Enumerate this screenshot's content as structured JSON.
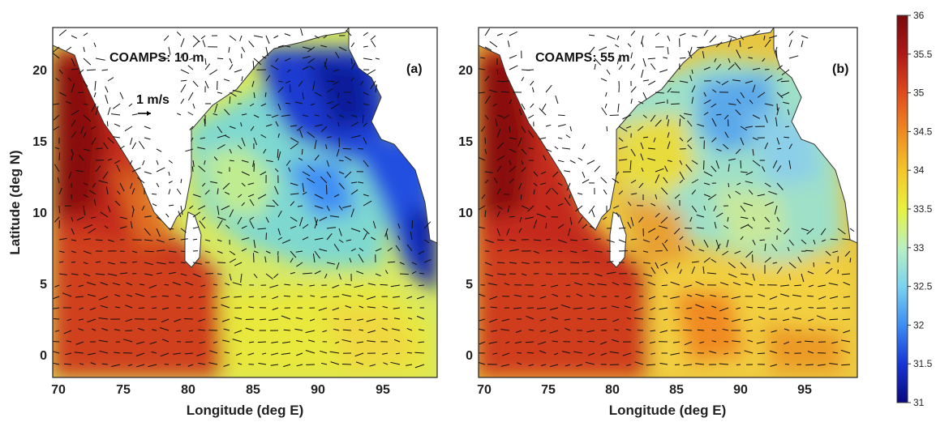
{
  "figure": {
    "ylabel": "Latitude (deg N)",
    "xlabel": "Longitude (deg E)",
    "vector_scale_label": "1 m/s"
  },
  "panels": [
    {
      "id": "a",
      "title": "COAMPS: 10 m",
      "panel_label": "(a)",
      "x_ticks": [
        "70",
        "75",
        "80",
        "85",
        "90",
        "95"
      ],
      "y_ticks": [
        "20",
        "15",
        "10",
        "5",
        "0"
      ],
      "xlim": [
        69.7,
        99.3
      ],
      "ylim": [
        -1.3,
        22.8
      ],
      "salinity_pattern": "fresh (31-32) in northern Bay of Bengal and Andaman Sea, saline (35-36) in Arabian Sea"
    },
    {
      "id": "b",
      "title": "COAMPS: 55 m",
      "panel_label": "(b)",
      "x_ticks": [
        "70",
        "75",
        "80",
        "85",
        "90",
        "95"
      ],
      "y_ticks": [
        "20",
        "15",
        "10",
        "5",
        "0"
      ],
      "xlim": [
        69.7,
        99.3
      ],
      "ylim": [
        -1.3,
        22.8
      ],
      "salinity_pattern": "mostly 33-34.5 in Bay of Bengal, saline (35-36) in Arabian Sea"
    }
  ],
  "colorbar": {
    "min": 31,
    "max": 36,
    "ticks": [
      "36",
      "35.5",
      "35",
      "34.5",
      "34",
      "33.5",
      "33",
      "32.5",
      "32",
      "31.5",
      "31"
    ],
    "colormap": "jet",
    "colors": [
      "#08087f",
      "#1734d8",
      "#3c8df5",
      "#7ad3f0",
      "#b8f0c0",
      "#e8f23c",
      "#f5c52a",
      "#f08a20",
      "#e04a1c",
      "#b01818",
      "#7a0a0a"
    ]
  }
}
